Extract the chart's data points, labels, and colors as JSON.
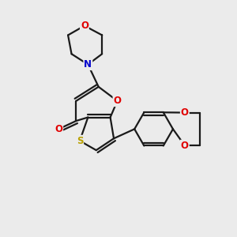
{
  "background_color": "#ebebeb",
  "bond_color": "#1a1a1a",
  "atom_colors": {
    "O": "#e00000",
    "N": "#0000cc",
    "S": "#b8a000",
    "C": "#1a1a1a"
  },
  "figsize": [
    3.0,
    3.0
  ],
  "dpi": 100,
  "lw": 1.6,
  "fontsize": 8.5
}
